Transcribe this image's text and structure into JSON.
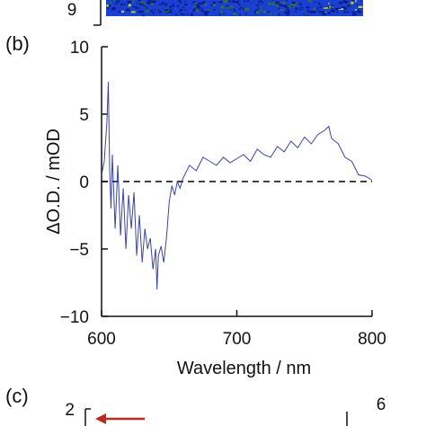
{
  "panels": {
    "b": "(b)",
    "c": "(c)"
  },
  "top_strip": {
    "tick_label": "9",
    "colors": [
      "#1b3fd0",
      "#0b1a8c",
      "#c8d23a",
      "#2e7c2a"
    ]
  },
  "panel_c_preview": {
    "left_tick": "2",
    "right_tick": "6",
    "arrow_color": "#c0281e"
  },
  "chart_data": {
    "type": "line",
    "xlabel": "Wavelength / nm",
    "ylabel": "ΔO.D. / mOD",
    "xlim": [
      600,
      800
    ],
    "ylim": [
      -10,
      10
    ],
    "xticks": [
      600,
      700,
      800
    ],
    "yticks": [
      10,
      5,
      0,
      -5,
      -10
    ],
    "ytick_labels": [
      "10",
      "5",
      "0",
      "−5",
      "−10"
    ],
    "baseline": 0,
    "line_color": "#3a43a8",
    "baseline_color": "#000000",
    "x": [
      600,
      602,
      604,
      605,
      606,
      607,
      608,
      610,
      612,
      614,
      616,
      618,
      620,
      622,
      624,
      626,
      628,
      630,
      632,
      634,
      636,
      638,
      640,
      641,
      642,
      644,
      646,
      648,
      650,
      652,
      654,
      656,
      658,
      660,
      665,
      670,
      675,
      680,
      685,
      690,
      695,
      700,
      705,
      710,
      715,
      720,
      725,
      730,
      735,
      740,
      745,
      750,
      755,
      760,
      765,
      768,
      770,
      775,
      780,
      785,
      790,
      795,
      800
    ],
    "y": [
      0.5,
      1.5,
      4.5,
      7.4,
      1.0,
      -2.0,
      2.0,
      -3.5,
      1.2,
      -4.0,
      -0.5,
      -5.0,
      -1.0,
      -3.5,
      -0.8,
      -5.5,
      -2.5,
      -6.0,
      -3.5,
      -5.0,
      -4.2,
      -6.5,
      -5.0,
      -8.0,
      -5.5,
      -4.8,
      -6.0,
      -4.2,
      -1.5,
      -0.3,
      -1.0,
      0.0,
      -0.5,
      0.2,
      1.2,
      0.8,
      1.8,
      1.5,
      1.2,
      1.8,
      1.4,
      1.7,
      2.0,
      1.5,
      2.4,
      2.0,
      1.8,
      2.6,
      2.2,
      3.0,
      2.5,
      3.3,
      2.8,
      3.5,
      3.8,
      4.1,
      3.2,
      2.8,
      1.8,
      1.5,
      0.5,
      0.4,
      0.1
    ]
  }
}
